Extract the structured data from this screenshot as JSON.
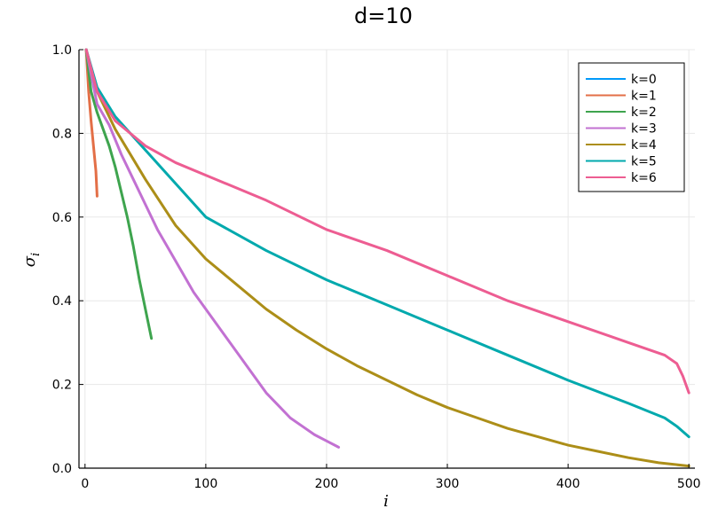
{
  "chart_data": {
    "type": "line",
    "title": "d=10",
    "xlabel": "i",
    "ylabel": "σ",
    "ylabel_sub": "i",
    "xlim": [
      -5,
      505
    ],
    "ylim": [
      0,
      1
    ],
    "xticks": [
      0,
      100,
      200,
      300,
      400,
      500
    ],
    "yticks": [
      0.0,
      0.2,
      0.4,
      0.6,
      0.8,
      1.0
    ],
    "xtick_labels": [
      "0",
      "100",
      "200",
      "300",
      "400",
      "500"
    ],
    "ytick_labels": [
      "0.0",
      "0.2",
      "0.4",
      "0.6",
      "0.8",
      "1.0"
    ],
    "grid": true,
    "legend_position": "top-right",
    "series": [
      {
        "name": "k=0",
        "color": "#009AFA",
        "x": [
          1
        ],
        "y": [
          1.0
        ]
      },
      {
        "name": "k=1",
        "color": "#E36F47",
        "x": [
          1,
          3,
          5,
          7,
          9,
          10
        ],
        "y": [
          1.0,
          0.9,
          0.83,
          0.77,
          0.71,
          0.65
        ]
      },
      {
        "name": "k=2",
        "color": "#3EA44E",
        "x": [
          1,
          5,
          10,
          15,
          20,
          25,
          30,
          35,
          40,
          45,
          50,
          55
        ],
        "y": [
          1.0,
          0.9,
          0.85,
          0.81,
          0.77,
          0.72,
          0.66,
          0.6,
          0.53,
          0.45,
          0.38,
          0.31
        ]
      },
      {
        "name": "k=3",
        "color": "#C271D2",
        "x": [
          1,
          10,
          20,
          30,
          40,
          50,
          60,
          70,
          80,
          90,
          100,
          110,
          120,
          130,
          140,
          150,
          160,
          170,
          180,
          190,
          200,
          210
        ],
        "y": [
          1.0,
          0.87,
          0.82,
          0.75,
          0.69,
          0.63,
          0.57,
          0.52,
          0.47,
          0.42,
          0.38,
          0.34,
          0.3,
          0.26,
          0.22,
          0.18,
          0.15,
          0.12,
          0.1,
          0.08,
          0.065,
          0.05
        ]
      },
      {
        "name": "k=4",
        "color": "#AC8E18",
        "x": [
          1,
          10,
          25,
          50,
          75,
          100,
          125,
          150,
          175,
          200,
          225,
          250,
          275,
          300,
          325,
          350,
          375,
          400,
          425,
          450,
          475,
          500
        ],
        "y": [
          1.0,
          0.9,
          0.81,
          0.69,
          0.58,
          0.5,
          0.44,
          0.38,
          0.33,
          0.285,
          0.245,
          0.21,
          0.175,
          0.145,
          0.12,
          0.095,
          0.075,
          0.055,
          0.04,
          0.025,
          0.013,
          0.005
        ]
      },
      {
        "name": "k=5",
        "color": "#00A9AD",
        "x": [
          1,
          10,
          25,
          50,
          75,
          100,
          150,
          200,
          250,
          300,
          350,
          400,
          450,
          480,
          490,
          500
        ],
        "y": [
          1.0,
          0.91,
          0.84,
          0.76,
          0.68,
          0.6,
          0.52,
          0.45,
          0.39,
          0.33,
          0.27,
          0.21,
          0.155,
          0.12,
          0.1,
          0.075
        ]
      },
      {
        "name": "k=6",
        "color": "#ED5D92",
        "x": [
          1,
          10,
          25,
          50,
          75,
          100,
          150,
          200,
          250,
          300,
          350,
          400,
          450,
          480,
          490,
          495,
          500
        ],
        "y": [
          1.0,
          0.9,
          0.83,
          0.77,
          0.73,
          0.7,
          0.64,
          0.57,
          0.52,
          0.46,
          0.4,
          0.35,
          0.3,
          0.27,
          0.25,
          0.22,
          0.18
        ]
      }
    ]
  }
}
